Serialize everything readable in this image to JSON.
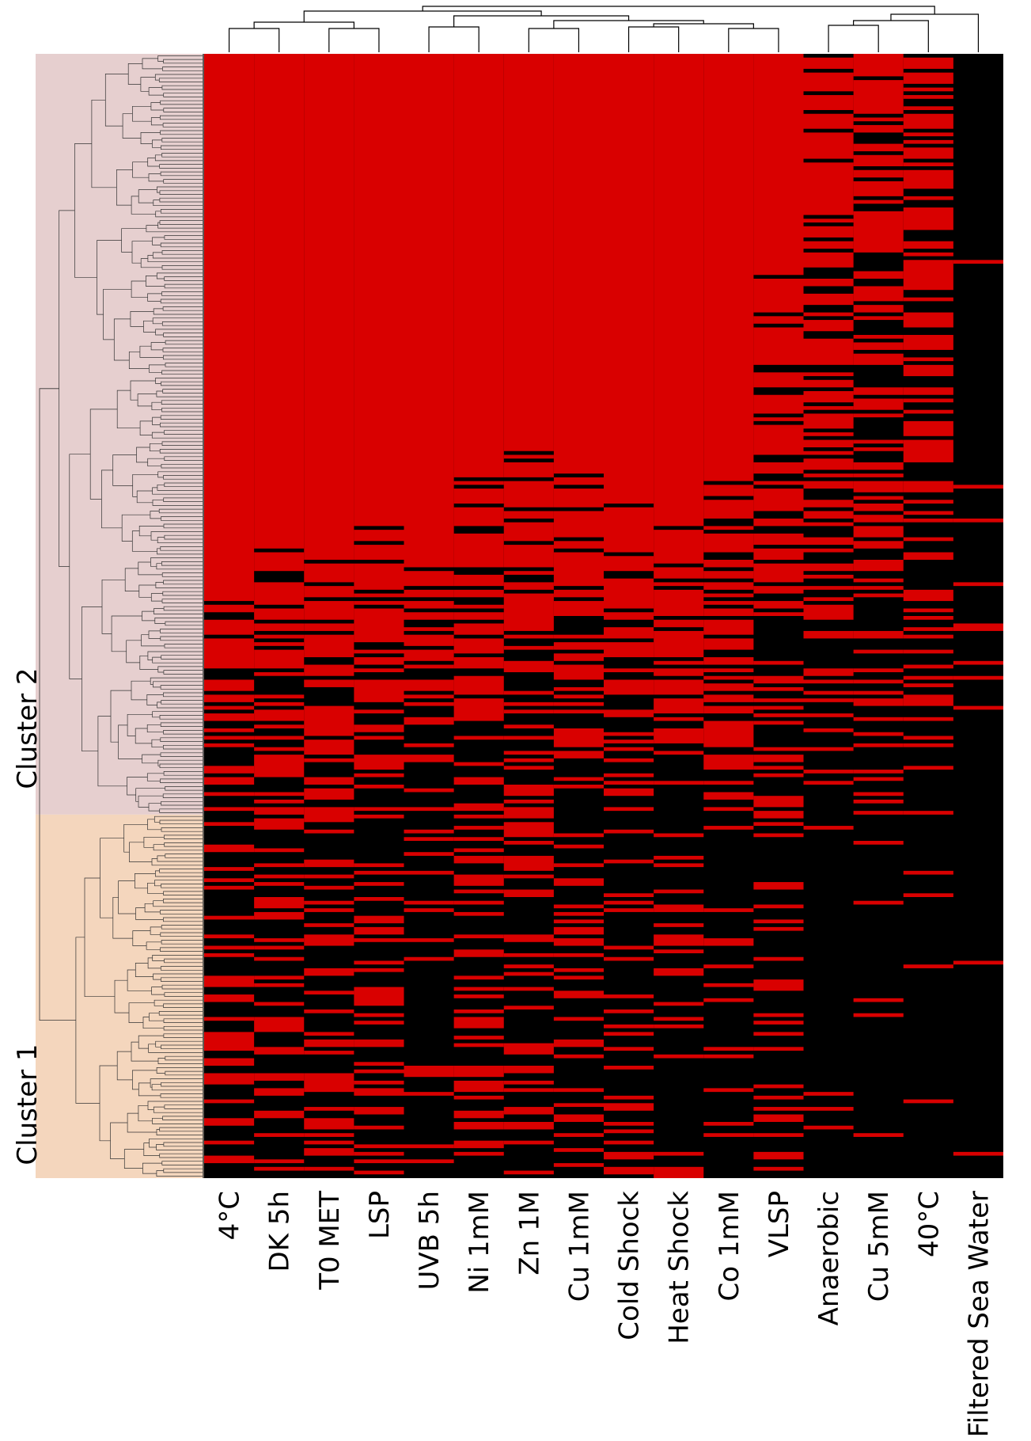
{
  "chart_data": {
    "type": "heatmap",
    "title": "",
    "columns": [
      "4°C",
      "DK 5h",
      "T0 MET",
      "LSP",
      "UVB 5h",
      "Ni 1mM",
      "Zn 1M",
      "Cu 1mM",
      "Cold Shock",
      "Heat Shock",
      "Co 1mM",
      "VLSP",
      "Anaerobic",
      "Cu 5mM",
      "40°C",
      "Filtered Sea Water"
    ],
    "column_dendrogram": true,
    "row_dendrogram": true,
    "clusters": [
      {
        "name": "Cluster 2",
        "position": "top",
        "color": "#e6cfcf",
        "row_fraction": 0.678
      },
      {
        "name": "Cluster 1",
        "position": "bottom",
        "color": "#f4d6bd",
        "row_fraction": 0.322
      }
    ],
    "color_scale": {
      "present": "#d90000",
      "absent": "#000000"
    },
    "fraction_red_by_column": {
      "Cluster 2": [
        0.88,
        0.86,
        0.85,
        0.82,
        0.8,
        0.77,
        0.74,
        0.76,
        0.78,
        0.77,
        0.72,
        0.55,
        0.4,
        0.38,
        0.33,
        0.08
      ],
      "Cluster 1": [
        0.35,
        0.33,
        0.3,
        0.3,
        0.22,
        0.35,
        0.33,
        0.3,
        0.28,
        0.22,
        0.18,
        0.25,
        0.05,
        0.08,
        0.04,
        0.01
      ]
    }
  }
}
